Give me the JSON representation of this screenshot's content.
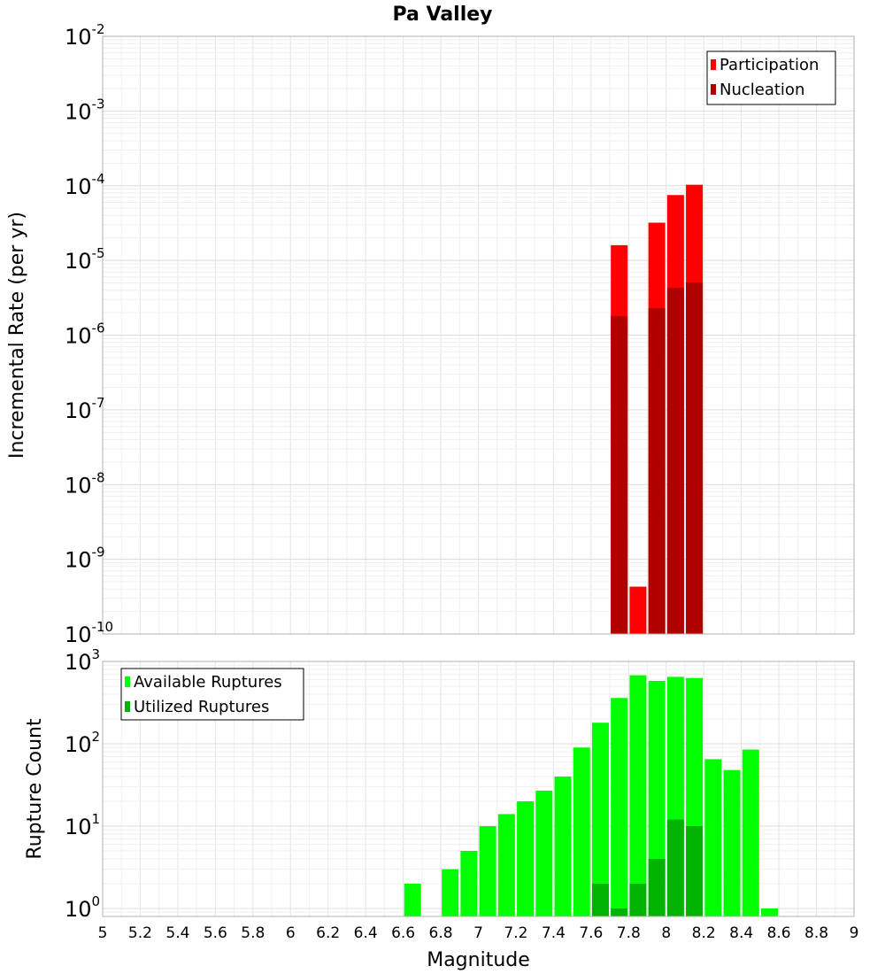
{
  "chart_data": [
    {
      "type": "bar",
      "title": "Pa Valley",
      "xlabel": "",
      "ylabel": "Incremental Rate (per yr)",
      "yscale": "log",
      "ylim": [
        1e-10,
        0.01
      ],
      "xlim": [
        5,
        9
      ],
      "grid": true,
      "legend_position": "top-right",
      "yticks": [
        {
          "base": "10",
          "exp": "-2"
        },
        {
          "base": "10",
          "exp": "-3"
        },
        {
          "base": "10",
          "exp": "-4"
        },
        {
          "base": "10",
          "exp": "-5"
        },
        {
          "base": "10",
          "exp": "-6"
        },
        {
          "base": "10",
          "exp": "-7"
        },
        {
          "base": "10",
          "exp": "-8"
        },
        {
          "base": "10",
          "exp": "-9"
        },
        {
          "base": "10",
          "exp": "-10"
        }
      ],
      "x": [
        7.75,
        7.85,
        7.95,
        8.05,
        8.15
      ],
      "series": [
        {
          "name": "Participation",
          "color": "#ff0000",
          "values": [
            1.6e-05,
            4.3e-10,
            3.2e-05,
            7.5e-05,
            0.000103
          ]
        },
        {
          "name": "Nucleation",
          "color": "#b00000",
          "values": [
            1.8e-06,
            null,
            2.3e-06,
            4.3e-06,
            5.1e-06
          ]
        }
      ]
    },
    {
      "type": "bar",
      "title": "",
      "xlabel": "Magnitude",
      "ylabel": "Rupture Count",
      "yscale": "log",
      "ylim": [
        0.8,
        1000
      ],
      "xlim": [
        5,
        9
      ],
      "grid": true,
      "legend_position": "top-left",
      "yticks": [
        {
          "base": "10",
          "exp": "3"
        },
        {
          "base": "10",
          "exp": "2"
        },
        {
          "base": "10",
          "exp": "1"
        },
        {
          "base": "10",
          "exp": "0"
        }
      ],
      "xticks": [
        "5",
        "5.2",
        "5.4",
        "5.6",
        "5.8",
        "6",
        "6.2",
        "6.4",
        "6.6",
        "6.8",
        "7",
        "7.2",
        "7.4",
        "7.6",
        "7.8",
        "8",
        "8.2",
        "8.4",
        "8.6",
        "8.8",
        "9"
      ],
      "x": [
        6.65,
        6.85,
        6.95,
        7.05,
        7.15,
        7.25,
        7.35,
        7.45,
        7.55,
        7.65,
        7.75,
        7.85,
        7.95,
        8.05,
        8.15,
        8.25,
        8.35,
        8.45,
        8.55
      ],
      "series": [
        {
          "name": "Available Ruptures",
          "color": "#00ff00",
          "values": [
            2,
            3,
            5,
            10,
            14,
            20,
            27,
            40,
            90,
            180,
            360,
            680,
            580,
            650,
            630,
            65,
            48,
            85,
            1
          ]
        },
        {
          "name": "Utilized Ruptures",
          "color": "#00b300",
          "values": [
            null,
            null,
            null,
            null,
            null,
            null,
            null,
            null,
            null,
            2,
            1,
            2,
            4,
            12,
            10,
            null,
            null,
            null,
            null
          ]
        }
      ]
    }
  ]
}
